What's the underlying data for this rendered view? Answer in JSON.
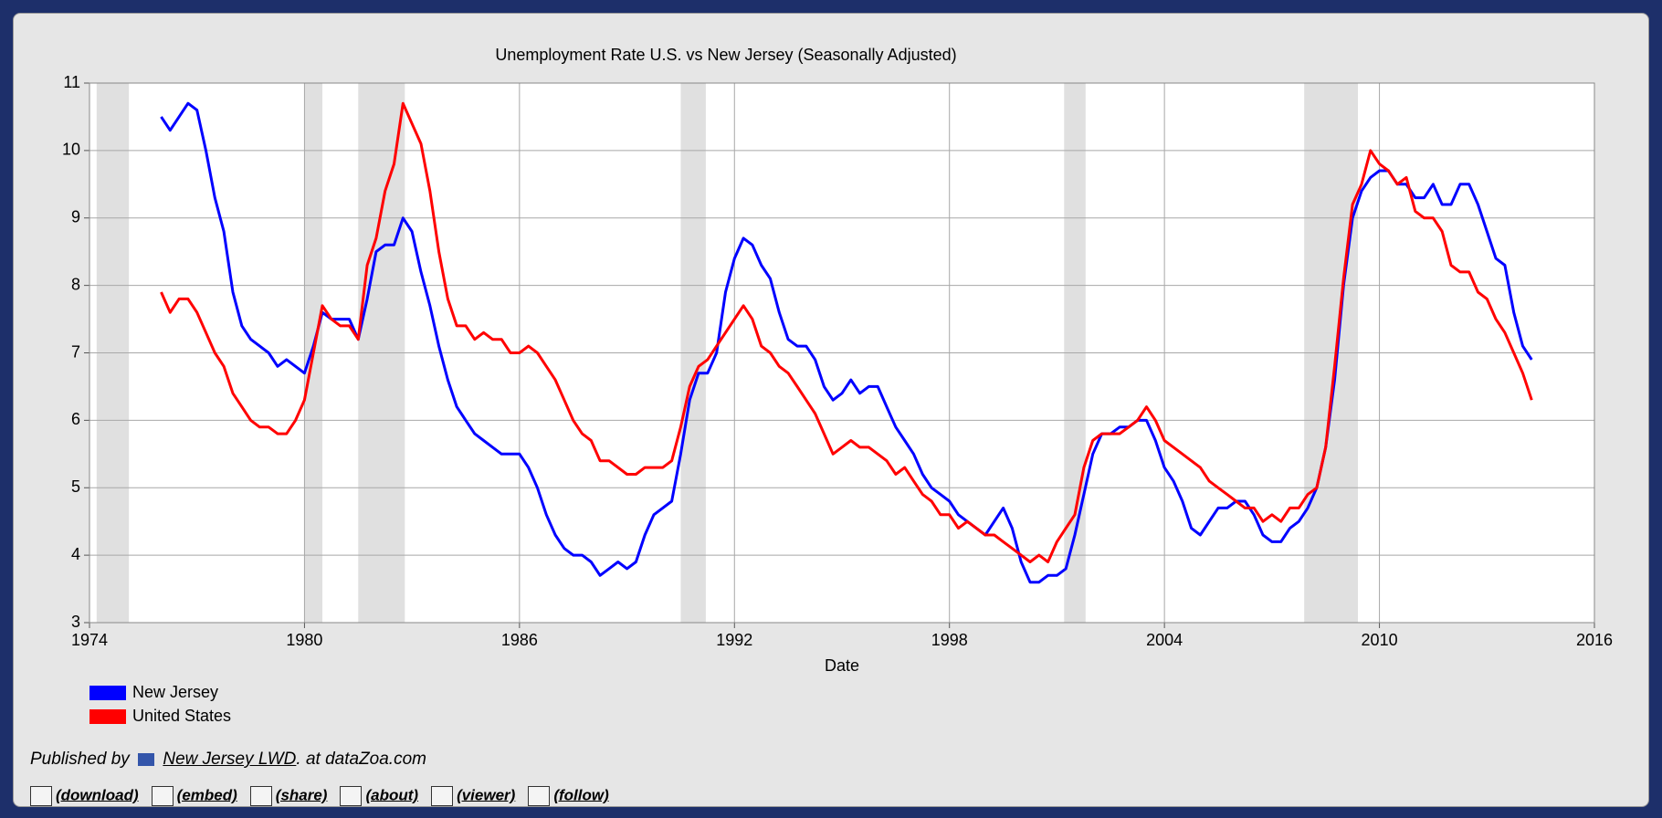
{
  "chart_data": {
    "type": "line",
    "title": "Unemployment Rate U.S. vs New Jersey (Seasonally Adjusted)",
    "xlabel": "Date",
    "xlim": [
      1974,
      2016
    ],
    "xticks": [
      1974,
      1980,
      1986,
      1992,
      1998,
      2004,
      2010,
      2016
    ],
    "ylim": [
      3,
      11
    ],
    "yticks": [
      3,
      4,
      5,
      6,
      7,
      8,
      9,
      10,
      11
    ],
    "grid": true,
    "legend": "bottom-left",
    "recessions": [
      [
        1974.2,
        1975.1
      ],
      [
        1980.0,
        1980.5
      ],
      [
        1981.5,
        1982.8
      ],
      [
        1990.5,
        1991.2
      ],
      [
        2001.2,
        2001.8
      ],
      [
        2007.9,
        2009.4
      ]
    ],
    "x": [
      1976,
      1976.25,
      1976.5,
      1976.75,
      1977,
      1977.25,
      1977.5,
      1977.75,
      1978,
      1978.25,
      1978.5,
      1978.75,
      1979,
      1979.25,
      1979.5,
      1979.75,
      1980,
      1980.25,
      1980.5,
      1980.75,
      1981,
      1981.25,
      1981.5,
      1981.75,
      1982,
      1982.25,
      1982.5,
      1982.75,
      1983,
      1983.25,
      1983.5,
      1983.75,
      1984,
      1984.25,
      1984.5,
      1984.75,
      1985,
      1985.25,
      1985.5,
      1985.75,
      1986,
      1986.25,
      1986.5,
      1986.75,
      1987,
      1987.25,
      1987.5,
      1987.75,
      1988,
      1988.25,
      1988.5,
      1988.75,
      1989,
      1989.25,
      1989.5,
      1989.75,
      1990,
      1990.25,
      1990.5,
      1990.75,
      1991,
      1991.25,
      1991.5,
      1991.75,
      1992,
      1992.25,
      1992.5,
      1992.75,
      1993,
      1993.25,
      1993.5,
      1993.75,
      1994,
      1994.25,
      1994.5,
      1994.75,
      1995,
      1995.25,
      1995.5,
      1995.75,
      1996,
      1996.25,
      1996.5,
      1996.75,
      1997,
      1997.25,
      1997.5,
      1997.75,
      1998,
      1998.25,
      1998.5,
      1998.75,
      1999,
      1999.25,
      1999.5,
      1999.75,
      2000,
      2000.25,
      2000.5,
      2000.75,
      2001,
      2001.25,
      2001.5,
      2001.75,
      2002,
      2002.25,
      2002.5,
      2002.75,
      2003,
      2003.25,
      2003.5,
      2003.75,
      2004,
      2004.25,
      2004.5,
      2004.75,
      2005,
      2005.25,
      2005.5,
      2005.75,
      2006,
      2006.25,
      2006.5,
      2006.75,
      2007,
      2007.25,
      2007.5,
      2007.75,
      2008,
      2008.25,
      2008.5,
      2008.75,
      2009,
      2009.25,
      2009.5,
      2009.75,
      2010,
      2010.25,
      2010.5,
      2010.75,
      2011,
      2011.25,
      2011.5,
      2011.75,
      2012,
      2012.25,
      2012.5,
      2012.75,
      2013,
      2013.25,
      2013.5,
      2013.75,
      2014,
      2014.25
    ],
    "series": [
      {
        "name": "New Jersey",
        "color": "#0000ff",
        "values": [
          10.5,
          10.3,
          10.5,
          10.7,
          10.6,
          10.0,
          9.3,
          8.8,
          7.9,
          7.4,
          7.2,
          7.1,
          7.0,
          6.8,
          6.9,
          6.8,
          6.7,
          7.1,
          7.6,
          7.5,
          7.5,
          7.5,
          7.2,
          7.8,
          8.5,
          8.6,
          8.6,
          9.0,
          8.8,
          8.2,
          7.7,
          7.1,
          6.6,
          6.2,
          6.0,
          5.8,
          5.7,
          5.6,
          5.5,
          5.5,
          5.5,
          5.3,
          5.0,
          4.6,
          4.3,
          4.1,
          4.0,
          4.0,
          3.9,
          3.7,
          3.8,
          3.9,
          3.8,
          3.9,
          4.3,
          4.6,
          4.7,
          4.8,
          5.5,
          6.3,
          6.7,
          6.7,
          7.0,
          7.9,
          8.4,
          8.7,
          8.6,
          8.3,
          8.1,
          7.6,
          7.2,
          7.1,
          7.1,
          6.9,
          6.5,
          6.3,
          6.4,
          6.6,
          6.4,
          6.5,
          6.5,
          6.2,
          5.9,
          5.7,
          5.5,
          5.2,
          5.0,
          4.9,
          4.8,
          4.6,
          4.5,
          4.4,
          4.3,
          4.5,
          4.7,
          4.4,
          3.9,
          3.6,
          3.6,
          3.7,
          3.7,
          3.8,
          4.3,
          4.9,
          5.5,
          5.8,
          5.8,
          5.9,
          5.9,
          6.0,
          6.0,
          5.7,
          5.3,
          5.1,
          4.8,
          4.4,
          4.3,
          4.5,
          4.7,
          4.7,
          4.8,
          4.8,
          4.6,
          4.3,
          4.2,
          4.2,
          4.4,
          4.5,
          4.7,
          5.0,
          5.6,
          6.6,
          8.0,
          9.0,
          9.4,
          9.6,
          9.7,
          9.7,
          9.5,
          9.5,
          9.3,
          9.3,
          9.5,
          9.2,
          9.2,
          9.5,
          9.5,
          9.2,
          8.8,
          8.4,
          8.3,
          7.6,
          7.1,
          6.9
        ]
      },
      {
        "name": "United States",
        "color": "#ff0000",
        "values": [
          7.9,
          7.6,
          7.8,
          7.8,
          7.6,
          7.3,
          7.0,
          6.8,
          6.4,
          6.2,
          6.0,
          5.9,
          5.9,
          5.8,
          5.8,
          6.0,
          6.3,
          7.0,
          7.7,
          7.5,
          7.4,
          7.4,
          7.2,
          8.3,
          8.7,
          9.4,
          9.8,
          10.7,
          10.4,
          10.1,
          9.4,
          8.5,
          7.8,
          7.4,
          7.4,
          7.2,
          7.3,
          7.2,
          7.2,
          7.0,
          7.0,
          7.1,
          7.0,
          6.8,
          6.6,
          6.3,
          6.0,
          5.8,
          5.7,
          5.4,
          5.4,
          5.3,
          5.2,
          5.2,
          5.3,
          5.3,
          5.3,
          5.4,
          5.9,
          6.5,
          6.8,
          6.9,
          7.1,
          7.3,
          7.5,
          7.7,
          7.5,
          7.1,
          7.0,
          6.8,
          6.7,
          6.5,
          6.3,
          6.1,
          5.8,
          5.5,
          5.6,
          5.7,
          5.6,
          5.6,
          5.5,
          5.4,
          5.2,
          5.3,
          5.1,
          4.9,
          4.8,
          4.6,
          4.6,
          4.4,
          4.5,
          4.4,
          4.3,
          4.3,
          4.2,
          4.1,
          4.0,
          3.9,
          4.0,
          3.9,
          4.2,
          4.4,
          4.6,
          5.3,
          5.7,
          5.8,
          5.8,
          5.8,
          5.9,
          6.0,
          6.2,
          6.0,
          5.7,
          5.6,
          5.5,
          5.4,
          5.3,
          5.1,
          5.0,
          4.9,
          4.8,
          4.7,
          4.7,
          4.5,
          4.6,
          4.5,
          4.7,
          4.7,
          4.9,
          5.0,
          5.6,
          6.8,
          8.1,
          9.2,
          9.5,
          10.0,
          9.8,
          9.7,
          9.5,
          9.6,
          9.1,
          9.0,
          9.0,
          8.8,
          8.3,
          8.2,
          8.2,
          7.9,
          7.8,
          7.5,
          7.3,
          7.0,
          6.7,
          6.3
        ]
      }
    ]
  },
  "footer": {
    "published_by": "Published by",
    "source_link": "New Jersey LWD",
    "source_suffix": ". at dataZoa.com",
    "links": [
      "(download)",
      "(embed)",
      "(share)",
      "(about)",
      "(viewer)",
      "(follow)"
    ]
  }
}
